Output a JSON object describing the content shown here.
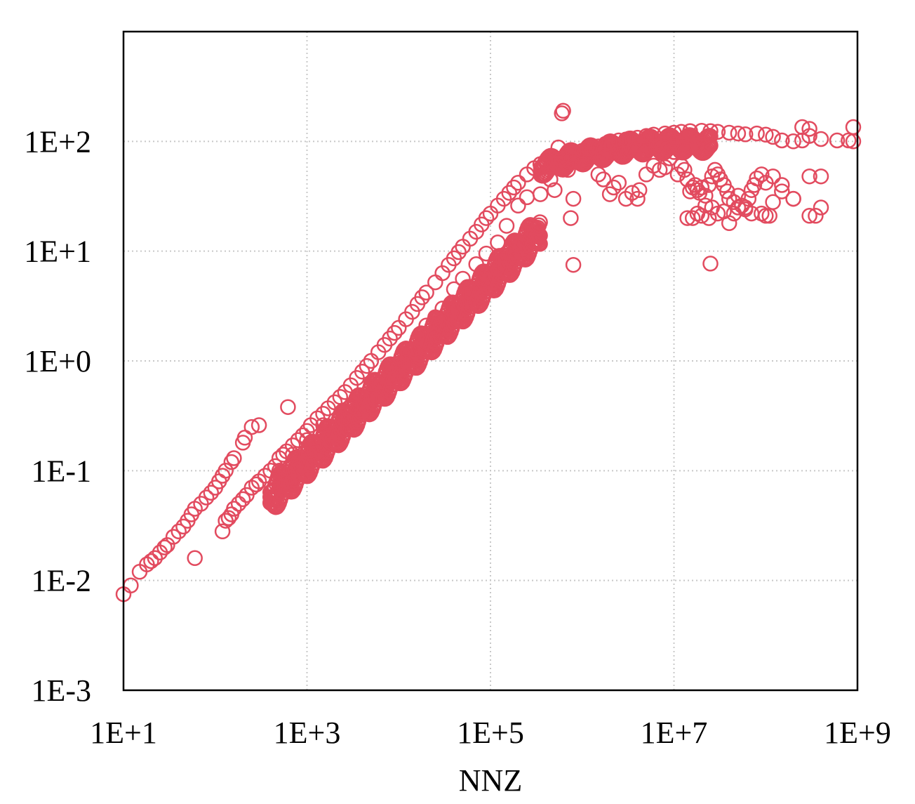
{
  "chart_data": {
    "type": "scatter",
    "xlabel": "NNZ",
    "ylabel": "",
    "x_scale": "log",
    "y_scale": "log",
    "xlim": [
      10,
      1000000000
    ],
    "ylim": [
      0.001,
      1000
    ],
    "grid": true,
    "x_ticks": [
      10,
      1000,
      100000,
      10000000,
      1000000000
    ],
    "x_tick_labels": [
      "1E+1",
      "1E+3",
      "1E+5",
      "1E+7",
      "1E+9"
    ],
    "y_ticks": [
      0.001,
      0.01,
      0.1,
      1,
      10,
      100
    ],
    "y_tick_labels": [
      "1E-3",
      "1E-2",
      "1E-1",
      "1E+0",
      "1E+1",
      "1E+2"
    ],
    "marker": "hollow-circle",
    "color": "#e24b5f",
    "points": [
      [
        10,
        0.0075
      ],
      [
        12,
        0.009
      ],
      [
        15,
        0.012
      ],
      [
        18,
        0.014
      ],
      [
        20,
        0.015
      ],
      [
        22,
        0.016
      ],
      [
        25,
        0.018
      ],
      [
        28,
        0.02
      ],
      [
        30,
        0.021
      ],
      [
        35,
        0.025
      ],
      [
        40,
        0.028
      ],
      [
        45,
        0.031
      ],
      [
        50,
        0.035
      ],
      [
        55,
        0.04
      ],
      [
        60,
        0.045
      ],
      [
        70,
        0.05
      ],
      [
        80,
        0.057
      ],
      [
        90,
        0.063
      ],
      [
        100,
        0.07
      ],
      [
        110,
        0.08
      ],
      [
        120,
        0.09
      ],
      [
        130,
        0.1
      ],
      [
        150,
        0.12
      ],
      [
        160,
        0.13
      ],
      [
        200,
        0.18
      ],
      [
        210,
        0.2
      ],
      [
        250,
        0.25
      ],
      [
        300,
        0.26
      ],
      [
        620,
        0.38
      ],
      [
        60,
        0.016
      ],
      [
        120,
        0.028
      ],
      [
        130,
        0.035
      ],
      [
        140,
        0.037
      ],
      [
        150,
        0.04
      ],
      [
        160,
        0.045
      ],
      [
        180,
        0.05
      ],
      [
        200,
        0.055
      ],
      [
        220,
        0.06
      ],
      [
        250,
        0.07
      ],
      [
        280,
        0.075
      ],
      [
        300,
        0.08
      ],
      [
        350,
        0.09
      ],
      [
        400,
        0.1
      ],
      [
        450,
        0.11
      ],
      [
        500,
        0.13
      ],
      [
        550,
        0.14
      ],
      [
        600,
        0.15
      ],
      [
        700,
        0.17
      ],
      [
        800,
        0.19
      ],
      [
        900,
        0.21
      ],
      [
        1000,
        0.23
      ],
      [
        1100,
        0.26
      ],
      [
        1300,
        0.3
      ],
      [
        1500,
        0.33
      ],
      [
        1700,
        0.37
      ],
      [
        2000,
        0.42
      ],
      [
        2300,
        0.47
      ],
      [
        2600,
        0.52
      ],
      [
        3000,
        0.6
      ],
      [
        3500,
        0.7
      ],
      [
        4000,
        0.8
      ],
      [
        4500,
        0.9
      ],
      [
        5000,
        1.0
      ],
      [
        6000,
        1.2
      ],
      [
        7000,
        1.4
      ],
      [
        8000,
        1.6
      ],
      [
        9000,
        1.8
      ],
      [
        10000,
        2.0
      ],
      [
        12000,
        2.4
      ],
      [
        14000,
        2.8
      ],
      [
        16000,
        3.3
      ],
      [
        18000,
        3.8
      ],
      [
        20000,
        4.2
      ],
      [
        25000,
        5.2
      ],
      [
        30000,
        6.3
      ],
      [
        35000,
        7.5
      ],
      [
        40000,
        8.6
      ],
      [
        45000,
        9.8
      ],
      [
        50000,
        11
      ],
      [
        60000,
        13
      ],
      [
        70000,
        15
      ],
      [
        80000,
        17.5
      ],
      [
        90000,
        20
      ],
      [
        100000,
        22
      ],
      [
        120000,
        26
      ],
      [
        140000,
        30
      ],
      [
        160000,
        34
      ],
      [
        180000,
        38
      ],
      [
        200000,
        42
      ],
      [
        250000,
        50
      ],
      [
        300000,
        57
      ],
      [
        350000,
        62
      ],
      [
        400000,
        66
      ],
      [
        500,
        0.1
      ],
      [
        700,
        0.14
      ],
      [
        1000,
        0.19
      ],
      [
        1500,
        0.26
      ],
      [
        1200,
        0.15
      ],
      [
        2500,
        0.3
      ],
      [
        3000,
        0.38
      ],
      [
        5000,
        0.62
      ],
      [
        8000,
        0.9
      ],
      [
        12000,
        1.3
      ],
      [
        15000,
        1.3
      ],
      [
        20000,
        2.1
      ],
      [
        30000,
        3.0
      ],
      [
        25000,
        2.5
      ],
      [
        40000,
        4.5
      ],
      [
        50000,
        5.6
      ],
      [
        70000,
        7.6
      ],
      [
        90000,
        9.5
      ],
      [
        120000,
        12
      ],
      [
        150000,
        17
      ],
      [
        200000,
        26
      ],
      [
        250000,
        31
      ],
      [
        350000,
        33
      ],
      [
        500000,
        36
      ],
      [
        800000,
        30
      ],
      [
        750000,
        20
      ],
      [
        800000,
        7.5
      ],
      [
        450000,
        45
      ],
      [
        550000,
        88
      ],
      [
        700000,
        55
      ],
      [
        1000000,
        62
      ],
      [
        600000,
        70
      ],
      [
        700000,
        75
      ],
      [
        800000,
        78
      ],
      [
        1000000,
        82
      ],
      [
        1200000,
        86
      ],
      [
        1500000,
        90
      ],
      [
        1800000,
        95
      ],
      [
        2000000,
        98
      ],
      [
        2500000,
        102
      ],
      [
        3000000,
        104
      ],
      [
        4000000,
        108
      ],
      [
        5000000,
        112
      ],
      [
        6000000,
        115
      ],
      [
        8000000,
        118
      ],
      [
        10000000,
        120
      ],
      [
        12000000,
        122
      ],
      [
        15000000,
        124
      ],
      [
        20000000,
        125
      ],
      [
        25000000,
        124
      ],
      [
        30000000,
        122
      ],
      [
        40000000,
        120
      ],
      [
        50000000,
        118
      ],
      [
        60000000,
        116
      ],
      [
        80000000,
        118
      ],
      [
        100000000,
        115
      ],
      [
        120000000,
        110
      ],
      [
        150000000,
        102
      ],
      [
        200000000,
        100
      ],
      [
        250000000,
        102
      ],
      [
        300000000,
        112
      ],
      [
        400000000,
        105
      ],
      [
        600000000,
        102
      ],
      [
        800000000,
        102
      ],
      [
        900000000,
        100
      ],
      [
        900000000,
        135
      ],
      [
        300000000,
        130
      ],
      [
        250000000,
        135
      ],
      [
        600000,
        180
      ],
      [
        620000,
        190
      ],
      [
        1500000,
        50
      ],
      [
        1700000,
        45
      ],
      [
        2000000,
        33
      ],
      [
        2200000,
        38
      ],
      [
        2500000,
        42
      ],
      [
        3000000,
        30
      ],
      [
        3500000,
        34
      ],
      [
        4000000,
        30
      ],
      [
        4200000,
        36
      ],
      [
        5000000,
        50
      ],
      [
        6000000,
        60
      ],
      [
        7000000,
        55
      ],
      [
        8000000,
        58
      ],
      [
        9000000,
        70
      ],
      [
        10000000,
        80
      ],
      [
        11000000,
        50
      ],
      [
        12000000,
        60
      ],
      [
        13000000,
        55
      ],
      [
        14000000,
        45
      ],
      [
        15000000,
        35
      ],
      [
        16000000,
        38
      ],
      [
        17000000,
        40
      ],
      [
        18000000,
        36
      ],
      [
        19000000,
        34
      ],
      [
        20000000,
        38
      ],
      [
        22000000,
        32
      ],
      [
        24000000,
        40
      ],
      [
        26000000,
        48
      ],
      [
        28000000,
        55
      ],
      [
        30000000,
        50
      ],
      [
        32000000,
        45
      ],
      [
        35000000,
        40
      ],
      [
        38000000,
        35
      ],
      [
        40000000,
        30
      ],
      [
        45000000,
        28
      ],
      [
        50000000,
        32
      ],
      [
        55000000,
        26
      ],
      [
        60000000,
        24
      ],
      [
        65000000,
        30
      ],
      [
        70000000,
        36
      ],
      [
        75000000,
        40
      ],
      [
        80000000,
        46
      ],
      [
        90000000,
        50
      ],
      [
        100000000,
        42
      ],
      [
        120000000,
        48
      ],
      [
        150000000,
        35
      ],
      [
        200000000,
        30
      ],
      [
        300000000,
        48
      ],
      [
        400000000,
        48
      ],
      [
        14000000,
        20
      ],
      [
        16000000,
        20
      ],
      [
        18000000,
        22
      ],
      [
        20000000,
        21
      ],
      [
        22000000,
        26
      ],
      [
        24000000,
        20
      ],
      [
        26000000,
        25
      ],
      [
        30000000,
        22
      ],
      [
        35000000,
        23
      ],
      [
        40000000,
        18
      ],
      [
        45000000,
        22
      ],
      [
        50000000,
        25
      ],
      [
        60000000,
        25
      ],
      [
        70000000,
        22
      ],
      [
        90000000,
        22
      ],
      [
        100000000,
        21
      ],
      [
        110000000,
        21
      ],
      [
        120000000,
        28
      ],
      [
        150000000,
        40
      ],
      [
        200000000,
        30
      ],
      [
        300000000,
        21
      ],
      [
        350000000,
        21
      ],
      [
        400000000,
        25
      ],
      [
        25000000,
        7.7
      ]
    ]
  }
}
